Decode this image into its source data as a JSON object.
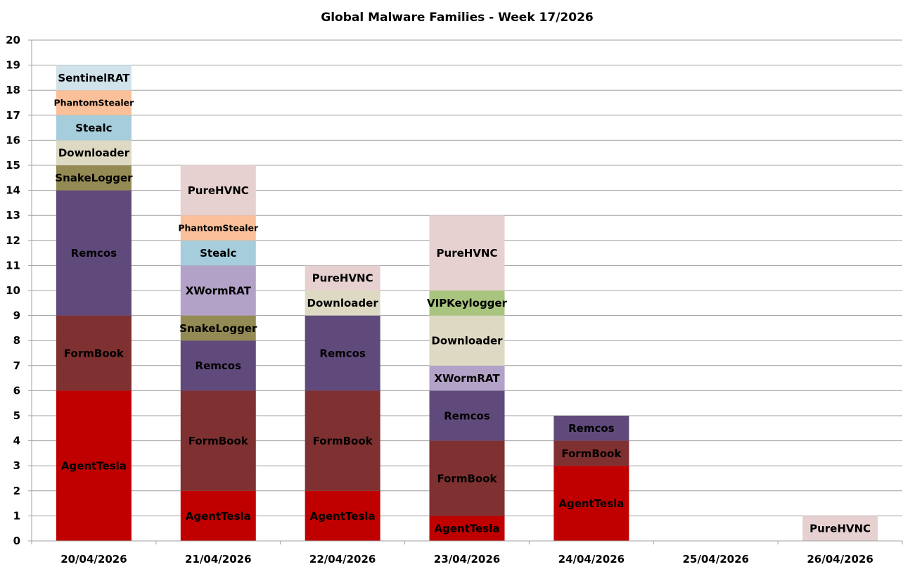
{
  "chart_data": {
    "type": "bar",
    "stacked": true,
    "title": "Global Malware Families - Week 17/2026",
    "xlabel": "",
    "ylabel": "",
    "ylim": [
      0,
      20
    ],
    "yticks": [
      0,
      1,
      2,
      3,
      4,
      5,
      6,
      7,
      8,
      9,
      10,
      11,
      12,
      13,
      14,
      15,
      16,
      17,
      18,
      19,
      20
    ],
    "grid": true,
    "legend": "none",
    "categories": [
      "20/04/2026",
      "21/04/2026",
      "22/04/2026",
      "23/04/2026",
      "24/04/2026",
      "25/04/2026",
      "26/04/2026"
    ],
    "series": [
      {
        "name": "AgentTesla",
        "color": "#c00000",
        "values": [
          6,
          2,
          2,
          1,
          3,
          0,
          0
        ]
      },
      {
        "name": "FormBook",
        "color": "#7f3030",
        "values": [
          3,
          4,
          4,
          3,
          1,
          0,
          0
        ]
      },
      {
        "name": "Remcos",
        "color": "#604a7b",
        "values": [
          5,
          2,
          3,
          2,
          1,
          0,
          0
        ]
      },
      {
        "name": "SnakeLogger",
        "color": "#948a54",
        "values": [
          1,
          1,
          0,
          0,
          0,
          0,
          0
        ]
      },
      {
        "name": "XWormRAT",
        "color": "#b3a2c7",
        "values": [
          0,
          2,
          0,
          1,
          0,
          0,
          0
        ]
      },
      {
        "name": "Downloader",
        "color": "#ddd9c3",
        "values": [
          1,
          0,
          1,
          2,
          0,
          0,
          0
        ]
      },
      {
        "name": "VIPKeylogger",
        "color": "#a9c47f",
        "values": [
          0,
          0,
          0,
          1,
          0,
          0,
          0
        ]
      },
      {
        "name": "Stealc",
        "color": "#a5cddc",
        "values": [
          1,
          1,
          0,
          0,
          0,
          0,
          0
        ]
      },
      {
        "name": "PhantomStealer",
        "color": "#fac09a",
        "values": [
          1,
          1,
          0,
          0,
          0,
          0,
          0
        ]
      },
      {
        "name": "PureHVNC",
        "color": "#e6d0d0",
        "values": [
          0,
          2,
          1,
          3,
          0,
          0,
          1
        ]
      },
      {
        "name": "SentinelRAT",
        "color": "#d0e3ea",
        "values": [
          1,
          0,
          0,
          0,
          0,
          0,
          0
        ]
      }
    ],
    "data_labels": true,
    "style": {
      "gridline_color": "#a0a0a0",
      "axis_color": "#a0a0a0",
      "text_color": "#000000",
      "background": "#ffffff"
    }
  }
}
